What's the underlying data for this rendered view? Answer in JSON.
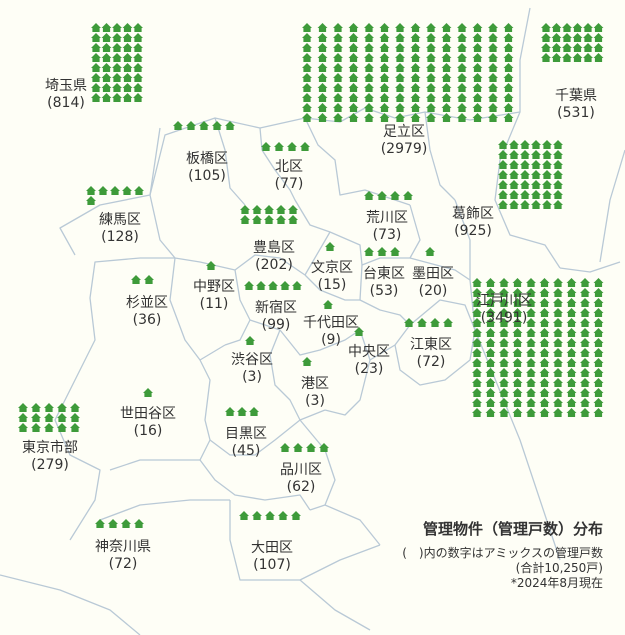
{
  "legend": {
    "title": "管理物件（管理戸数）分布",
    "note1": "(　)内の数字はアミックスの管理戸数",
    "note2": "(合計10,250戸)",
    "note3": "*2024年8月現在"
  },
  "colors": {
    "icon": "#3e9b3a",
    "background": "#fefef6",
    "border": "#b9c9d6",
    "text": "#333333"
  },
  "icon_name": "house-icon",
  "areas": [
    {
      "name": "埼玉県",
      "count": "814",
      "icons": 40
    },
    {
      "name": "足立区",
      "count": "2979",
      "icons": 140
    },
    {
      "name": "千葉県",
      "count": "531",
      "icons": 24
    },
    {
      "name": "板橋区",
      "count": "105",
      "icons": 5
    },
    {
      "name": "北区",
      "count": "77",
      "icons": 4
    },
    {
      "name": "練馬区",
      "count": "128",
      "icons": 6
    },
    {
      "name": "荒川区",
      "count": "73",
      "icons": 4
    },
    {
      "name": "葛飾区",
      "count": "925",
      "icons": 42
    },
    {
      "name": "豊島区",
      "count": "202",
      "icons": 10
    },
    {
      "name": "文京区",
      "count": "15",
      "icons": 1
    },
    {
      "name": "台東区",
      "count": "53",
      "icons": 3
    },
    {
      "name": "墨田区",
      "count": "20",
      "icons": 1
    },
    {
      "name": "中野区",
      "count": "11",
      "icons": 1
    },
    {
      "name": "杉並区",
      "count": "36",
      "icons": 2
    },
    {
      "name": "新宿区",
      "count": "99",
      "icons": 5
    },
    {
      "name": "江戸川区",
      "count": "3491",
      "icons": 140
    },
    {
      "name": "千代田区",
      "count": "9",
      "icons": 1
    },
    {
      "name": "中央区",
      "count": "23",
      "icons": 1
    },
    {
      "name": "江東区",
      "count": "72",
      "icons": 4
    },
    {
      "name": "渋谷区",
      "count": "3",
      "icons": 1
    },
    {
      "name": "港区",
      "count": "3",
      "icons": 1
    },
    {
      "name": "世田谷区",
      "count": "16",
      "icons": 1
    },
    {
      "name": "目黒区",
      "count": "45",
      "icons": 3
    },
    {
      "name": "東京市部",
      "count": "279",
      "icons": 15
    },
    {
      "name": "品川区",
      "count": "62",
      "icons": 4
    },
    {
      "name": "神奈川県",
      "count": "72",
      "icons": 4
    },
    {
      "name": "大田区",
      "count": "107",
      "icons": 5
    }
  ]
}
